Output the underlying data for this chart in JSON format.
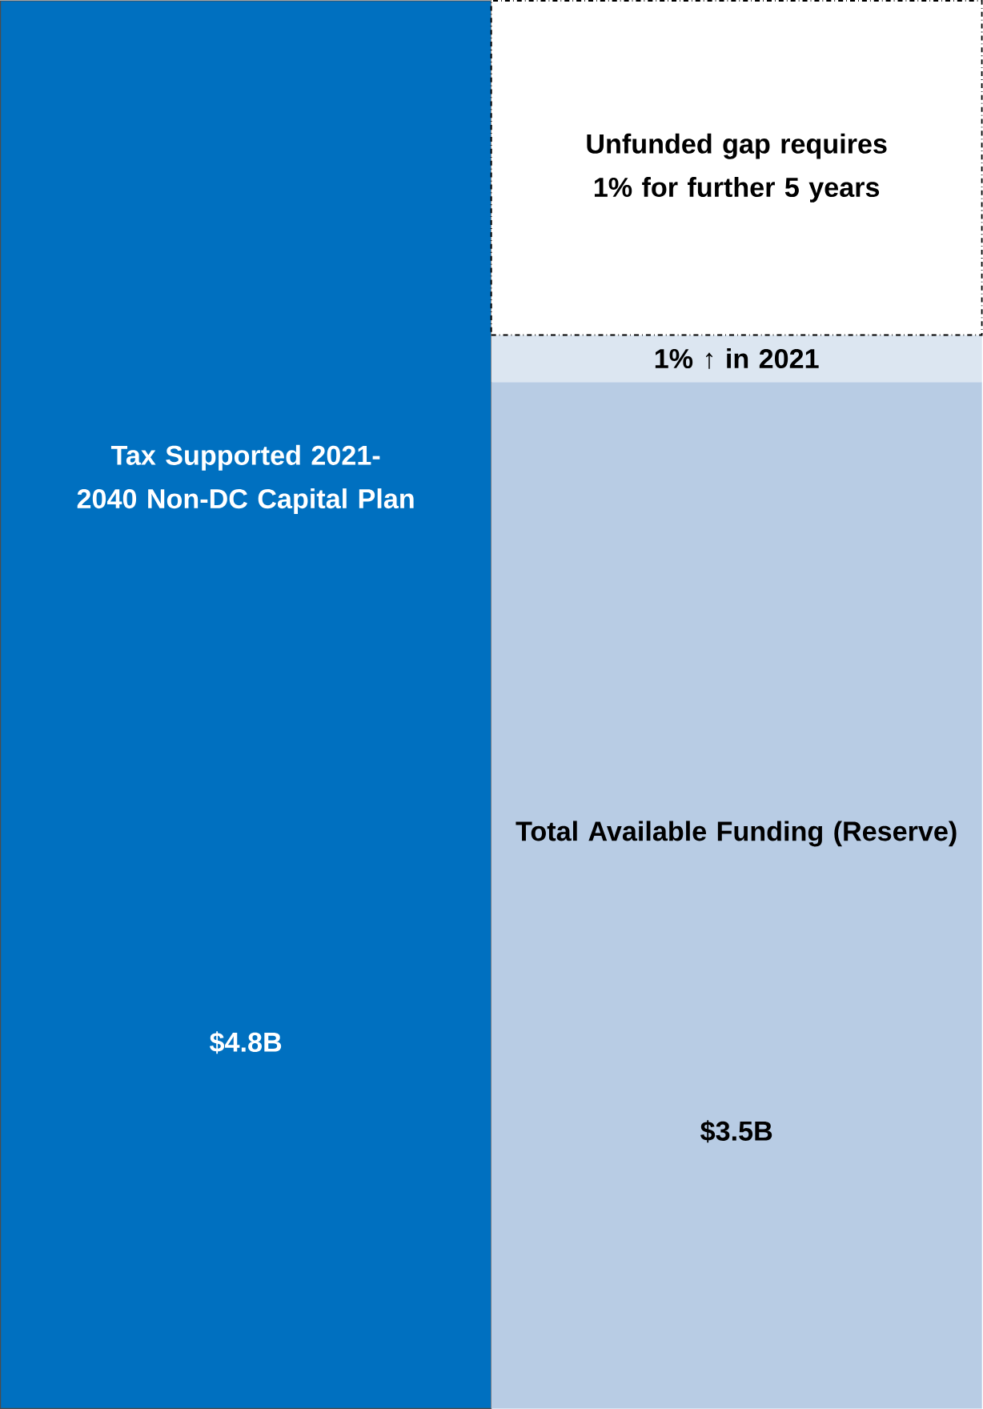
{
  "chart_data": {
    "type": "bar",
    "stacked": true,
    "categories": [
      null,
      null
    ],
    "series": [
      {
        "name": "Tax Supported 2021-2040 Non-DC Capital Plan",
        "color": "#0070c0",
        "values": [
          4.8,
          null
        ],
        "value_labels": [
          "$4.8B",
          null
        ]
      },
      {
        "name": "Total Available Funding (Reserve)",
        "color": "#b8cce4",
        "values": [
          null,
          3.5
        ],
        "value_labels": [
          null,
          "$3.5B"
        ]
      },
      {
        "name": "1% ↑ in 2021",
        "color": "#dce6f1",
        "values": [
          null,
          0.16
        ]
      },
      {
        "name": "Unfunded gap requires 1% for further 5 years",
        "color": "#ffffff",
        "values": [
          null,
          1.14
        ],
        "line_style": "dashed"
      }
    ]
  }
}
